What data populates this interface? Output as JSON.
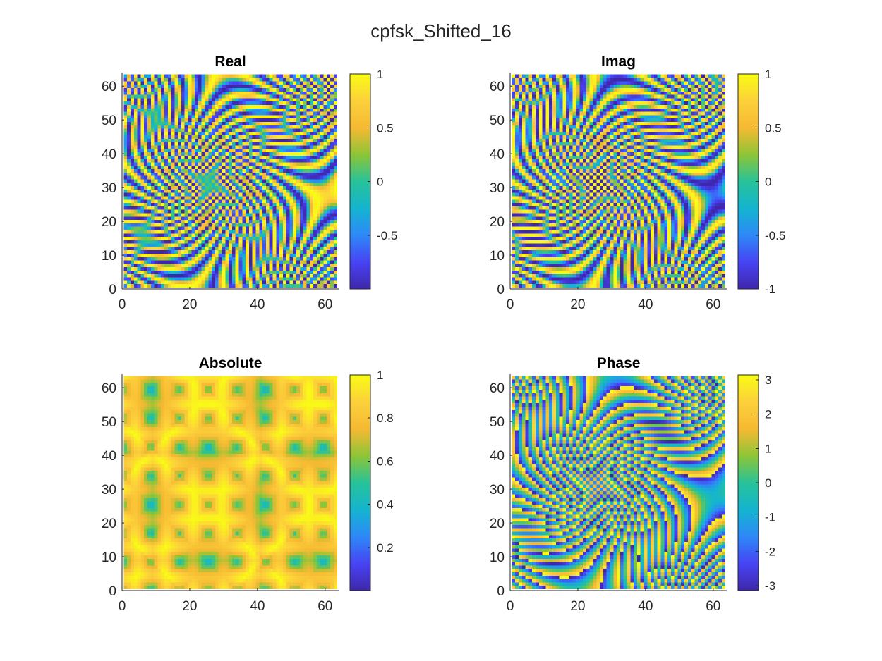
{
  "figure": {
    "title": "cpfsk_Shifted_16",
    "background": "#ffffff"
  },
  "chart_data": [
    {
      "type": "heatmap",
      "title": "Real",
      "xlabel": "",
      "ylabel": "",
      "xlim": [
        0,
        64
      ],
      "ylim": [
        0,
        64
      ],
      "xticks": [
        "0",
        "20",
        "40",
        "60"
      ],
      "yticks": [
        "0",
        "10",
        "20",
        "30",
        "40",
        "50",
        "60"
      ],
      "colorbar": {
        "range": [
          -1,
          1
        ],
        "ticks": [
          "1",
          "0.5",
          "0",
          "-0.5"
        ],
        "tick_values": [
          1,
          0.5,
          0,
          -0.5
        ]
      },
      "pattern": "diagonal checkerboard of values in [-1, 1]; strong main diagonal crossing near (25,25); orthogonal diagonal near (41,41)",
      "grid_size": [
        64,
        64
      ]
    },
    {
      "type": "heatmap",
      "title": "Imag",
      "xlabel": "",
      "ylabel": "",
      "xlim": [
        0,
        64
      ],
      "ylim": [
        0,
        64
      ],
      "xticks": [
        "0",
        "20",
        "40",
        "60"
      ],
      "yticks": [
        "0",
        "10",
        "20",
        "30",
        "40",
        "50",
        "60"
      ],
      "colorbar": {
        "range": [
          -1,
          1
        ],
        "ticks": [
          "1",
          "0.5",
          "0",
          "-0.5",
          "-1"
        ],
        "tick_values": [
          1,
          0.5,
          0,
          -0.5,
          -1
        ]
      },
      "pattern": "diagonal checkerboard of values in [-1, 1]; near-zero band along main diagonal",
      "grid_size": [
        64,
        64
      ]
    },
    {
      "type": "heatmap",
      "title": "Absolute",
      "xlabel": "",
      "ylabel": "",
      "xlim": [
        0,
        64
      ],
      "ylim": [
        0,
        64
      ],
      "xticks": [
        "0",
        "20",
        "40",
        "60"
      ],
      "yticks": [
        "0",
        "10",
        "20",
        "30",
        "40",
        "50",
        "60"
      ],
      "colorbar": {
        "range": [
          0,
          1
        ],
        "ticks": [
          "1",
          "0.8",
          "0.6",
          "0.4",
          "0.2"
        ],
        "tick_values": [
          1,
          0.8,
          0.6,
          0.4,
          0.2
        ]
      },
      "pattern": "symmetric block pattern with block edges at 9, 16, 25, 41, 48, 56; magnitudes in [0, 1]",
      "grid_size": [
        64,
        64
      ]
    },
    {
      "type": "heatmap",
      "title": "Phase",
      "xlabel": "",
      "ylabel": "",
      "xlim": [
        0,
        64
      ],
      "ylim": [
        0,
        64
      ],
      "xticks": [
        "0",
        "20",
        "40",
        "60"
      ],
      "yticks": [
        "0",
        "10",
        "20",
        "30",
        "40",
        "50",
        "60"
      ],
      "colorbar": {
        "range": [
          -3.1416,
          3.1416
        ],
        "ticks": [
          "3",
          "2",
          "1",
          "0",
          "-1",
          "-2",
          "-3"
        ],
        "tick_values": [
          3,
          2,
          1,
          0,
          -1,
          -2,
          -3
        ]
      },
      "pattern": "phase angle in [-pi, pi] forming concentric diamonds centred near (41,41) and (25,25)",
      "grid_size": [
        64,
        64
      ]
    }
  ],
  "colormap": {
    "name": "parula",
    "stops": [
      "#3e26a8",
      "#4743f3",
      "#2e87f7",
      "#14b4d0",
      "#27c29a",
      "#8cc538",
      "#f5b932",
      "#fcd03b",
      "#f9fb15"
    ]
  }
}
